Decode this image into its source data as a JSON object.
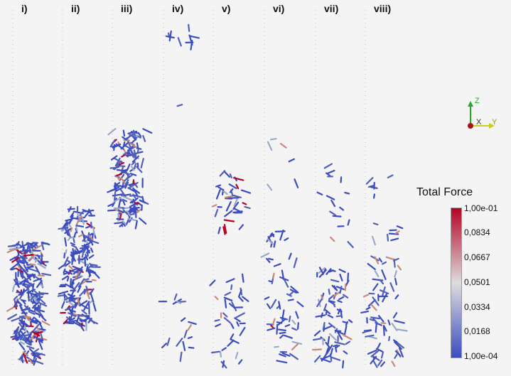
{
  "panels": [
    {
      "label": "i)"
    },
    {
      "label": "ii)"
    },
    {
      "label": "iii)"
    },
    {
      "label": "iv)"
    },
    {
      "label": "v)"
    },
    {
      "label": "vi)"
    },
    {
      "label": "vii)"
    },
    {
      "label": "viii)"
    }
  ],
  "legend": {
    "title": "Total Force",
    "ticks": [
      "1,00e-01",
      "0,0834",
      "0,0667",
      "0,0501",
      "0,0334",
      "0,0168",
      "1,00e-04"
    ],
    "color_high": "#b40426",
    "color_mid": "#dddddd",
    "color_low": "#3b4cc0"
  },
  "axes": {
    "z": "Z",
    "x": "X",
    "y": "Y",
    "z_color": "#22aa22",
    "y_color": "#cccc22",
    "x_color": "#aa1111"
  }
}
